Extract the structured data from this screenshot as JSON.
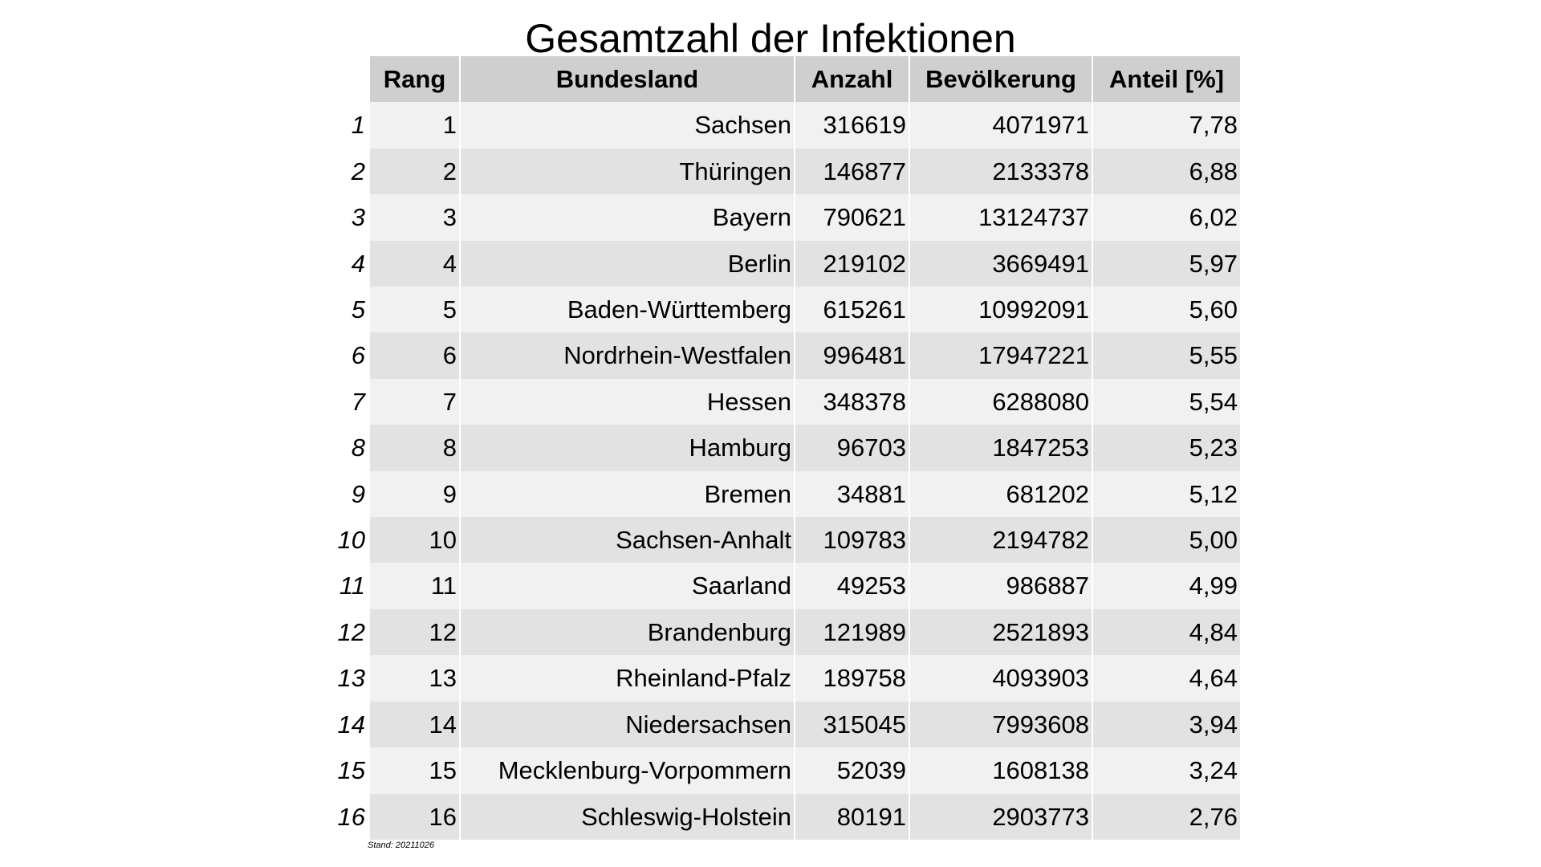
{
  "title": "Gesamtzahl der Infektionen",
  "headers": {
    "rang": "Rang",
    "bundesland": "Bundesland",
    "anzahl": "Anzahl",
    "bevoelkerung": "Bevölkerung",
    "anteil": "Anteil [%]"
  },
  "rows": [
    {
      "idx": "1",
      "rang": "1",
      "bundesland": "Sachsen",
      "anzahl": "316619",
      "bevoelkerung": "4071971",
      "anteil": "7,78"
    },
    {
      "idx": "2",
      "rang": "2",
      "bundesland": "Thüringen",
      "anzahl": "146877",
      "bevoelkerung": "2133378",
      "anteil": "6,88"
    },
    {
      "idx": "3",
      "rang": "3",
      "bundesland": "Bayern",
      "anzahl": "790621",
      "bevoelkerung": "13124737",
      "anteil": "6,02"
    },
    {
      "idx": "4",
      "rang": "4",
      "bundesland": "Berlin",
      "anzahl": "219102",
      "bevoelkerung": "3669491",
      "anteil": "5,97"
    },
    {
      "idx": "5",
      "rang": "5",
      "bundesland": "Baden-Württemberg",
      "anzahl": "615261",
      "bevoelkerung": "10992091",
      "anteil": "5,60"
    },
    {
      "idx": "6",
      "rang": "6",
      "bundesland": "Nordrhein-Westfalen",
      "anzahl": "996481",
      "bevoelkerung": "17947221",
      "anteil": "5,55"
    },
    {
      "idx": "7",
      "rang": "7",
      "bundesland": "Hessen",
      "anzahl": "348378",
      "bevoelkerung": "6288080",
      "anteil": "5,54"
    },
    {
      "idx": "8",
      "rang": "8",
      "bundesland": "Hamburg",
      "anzahl": "96703",
      "bevoelkerung": "1847253",
      "anteil": "5,23"
    },
    {
      "idx": "9",
      "rang": "9",
      "bundesland": "Bremen",
      "anzahl": "34881",
      "bevoelkerung": "681202",
      "anteil": "5,12"
    },
    {
      "idx": "10",
      "rang": "10",
      "bundesland": "Sachsen-Anhalt",
      "anzahl": "109783",
      "bevoelkerung": "2194782",
      "anteil": "5,00"
    },
    {
      "idx": "11",
      "rang": "11",
      "bundesland": "Saarland",
      "anzahl": "49253",
      "bevoelkerung": "986887",
      "anteil": "4,99"
    },
    {
      "idx": "12",
      "rang": "12",
      "bundesland": "Brandenburg",
      "anzahl": "121989",
      "bevoelkerung": "2521893",
      "anteil": "4,84"
    },
    {
      "idx": "13",
      "rang": "13",
      "bundesland": "Rheinland-Pfalz",
      "anzahl": "189758",
      "bevoelkerung": "4093903",
      "anteil": "4,64"
    },
    {
      "idx": "14",
      "rang": "14",
      "bundesland": "Niedersachsen",
      "anzahl": "315045",
      "bevoelkerung": "7993608",
      "anteil": "3,94"
    },
    {
      "idx": "15",
      "rang": "15",
      "bundesland": "Mecklenburg-Vorpommern",
      "anzahl": "52039",
      "bevoelkerung": "1608138",
      "anteil": "3,24"
    },
    {
      "idx": "16",
      "rang": "16",
      "bundesland": "Schleswig-Holstein",
      "anzahl": "80191",
      "bevoelkerung": "2903773",
      "anteil": "2,76"
    }
  ],
  "footnote": "Stand: 20211026"
}
